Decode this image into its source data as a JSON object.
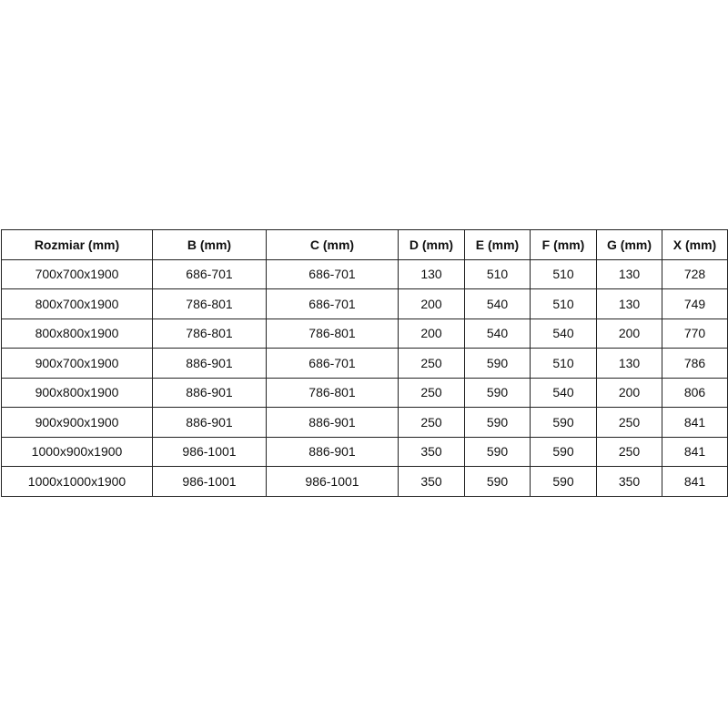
{
  "table": {
    "headers": [
      "Rozmiar (mm)",
      "B (mm)",
      "C (mm)",
      "D (mm)",
      "E (mm)",
      "F (mm)",
      "G (mm)",
      "X (mm)"
    ],
    "rows": [
      [
        "700x700x1900",
        "686-701",
        "686-701",
        "130",
        "510",
        "510",
        "130",
        "728"
      ],
      [
        "800x700x1900",
        "786-801",
        "686-701",
        "200",
        "540",
        "510",
        "130",
        "749"
      ],
      [
        "800x800x1900",
        "786-801",
        "786-801",
        "200",
        "540",
        "540",
        "200",
        "770"
      ],
      [
        "900x700x1900",
        "886-901",
        "686-701",
        "250",
        "590",
        "510",
        "130",
        "786"
      ],
      [
        "900x800x1900",
        "886-901",
        "786-801",
        "250",
        "590",
        "540",
        "200",
        "806"
      ],
      [
        "900x900x1900",
        "886-901",
        "886-901",
        "250",
        "590",
        "590",
        "250",
        "841"
      ],
      [
        "1000x900x1900",
        "986-1001",
        "886-901",
        "350",
        "590",
        "590",
        "250",
        "841"
      ],
      [
        "1000x1000x1900",
        "986-1001",
        "986-1001",
        "350",
        "590",
        "590",
        "350",
        "841"
      ]
    ]
  }
}
